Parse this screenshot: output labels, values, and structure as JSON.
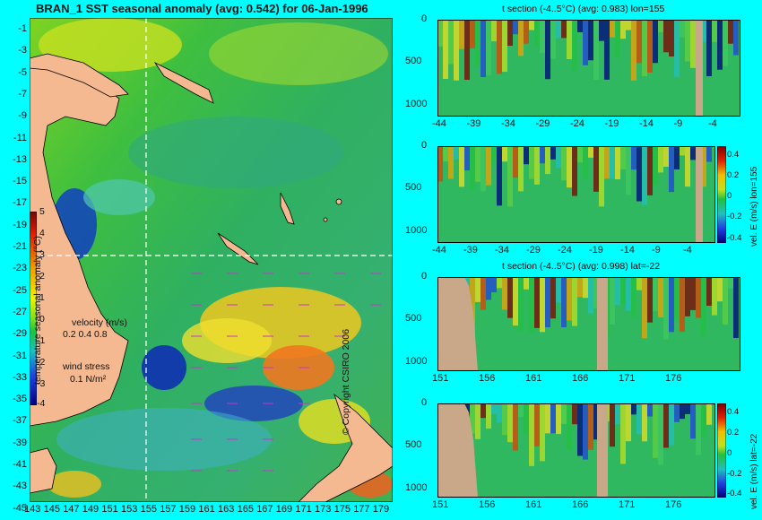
{
  "main_map": {
    "title": "BRAN_1 SST seasonal anomaly (avg: 0.542) for 06-Jan-1996",
    "lat_ticks": [
      "-1",
      "-3",
      "-5",
      "-7",
      "-9",
      "-11",
      "-13",
      "-15",
      "-17",
      "-19",
      "-21",
      "-23",
      "-25",
      "-27",
      "-29",
      "-31",
      "-33",
      "-35",
      "-37",
      "-39",
      "-41",
      "-43",
      "-45"
    ],
    "lon_ticks": [
      "143",
      "145",
      "147",
      "149",
      "151",
      "153",
      "155",
      "157",
      "159",
      "161",
      "163",
      "165",
      "167",
      "169",
      "171",
      "173",
      "175",
      "177",
      "179"
    ],
    "colorbar_label": "temperature seasonal anomaly (°C)",
    "colorbar_ticks": [
      "5",
      "4",
      "3",
      "2",
      "1",
      "0",
      "-1",
      "-2",
      "-3",
      "-4"
    ],
    "velocity_label": "velocity (m/s)",
    "velocity_scale": "0.2 0.4 0.8",
    "wind_label": "wind stress",
    "wind_scale": "0.1 N/m²",
    "copyright": "© Copyright CSIRO 2006"
  },
  "panels": [
    {
      "title": "t section (-4..5°C) (avg: 0.983) lon=155",
      "y_ticks": [
        "0",
        "500",
        "1000"
      ],
      "x_ticks": [
        "-44",
        "-39",
        "-34",
        "-29",
        "-24",
        "-19",
        "-14",
        "-9",
        "-4"
      ]
    },
    {
      "title": "",
      "y_ticks": [
        "0",
        "500",
        "1000"
      ],
      "x_ticks": [
        "-44",
        "-39",
        "-34",
        "-29",
        "-24",
        "-19",
        "-14",
        "-9",
        "-4"
      ],
      "cbar_label": "vel. E (m/s) lon=155",
      "cbar_ticks": [
        "0.4",
        "0.2",
        "0",
        "-0.2",
        "-0.4"
      ]
    },
    {
      "title": "t section (-4..5°C) (avg: 0.998) lat=-22",
      "y_ticks": [
        "0",
        "500",
        "1000"
      ],
      "x_ticks": [
        "151",
        "156",
        "161",
        "166",
        "171",
        "176"
      ]
    },
    {
      "title": "",
      "y_ticks": [
        "0",
        "500",
        "1000"
      ],
      "x_ticks": [
        "151",
        "156",
        "161",
        "166",
        "171",
        "176"
      ],
      "cbar_label": "vel. E (m/s) lat=-22",
      "cbar_ticks": [
        "0.4",
        "0.2",
        "0",
        "-0.2",
        "-0.4"
      ]
    }
  ],
  "chart_data": [
    {
      "type": "heatmap",
      "title": "BRAN_1 SST seasonal anomaly (avg: 0.542) for 06-Jan-1996",
      "xlabel": "",
      "ylabel": "",
      "xlim": [
        143,
        179
      ],
      "ylim": [
        -45,
        -1
      ],
      "value_range": [
        -4,
        5
      ],
      "marker_lon": 155,
      "marker_lat": -22
    },
    {
      "type": "heatmap",
      "title": "t section (-4..5°C) (avg: 0.983) lon=155",
      "xlim": [
        -44,
        -1
      ],
      "ylim": [
        1050,
        0
      ]
    },
    {
      "type": "heatmap",
      "title": "",
      "xlim": [
        -44,
        -1
      ],
      "ylim": [
        1050,
        0
      ],
      "value_range": [
        -0.4,
        0.4
      ]
    },
    {
      "type": "heatmap",
      "title": "t section (-4..5°C) (avg: 0.998) lat=-22",
      "xlim": [
        150,
        180
      ],
      "ylim": [
        1050,
        0
      ]
    },
    {
      "type": "heatmap",
      "title": "",
      "xlim": [
        150,
        180
      ],
      "ylim": [
        1050,
        0
      ],
      "value_range": [
        -0.4,
        0.4
      ]
    }
  ]
}
